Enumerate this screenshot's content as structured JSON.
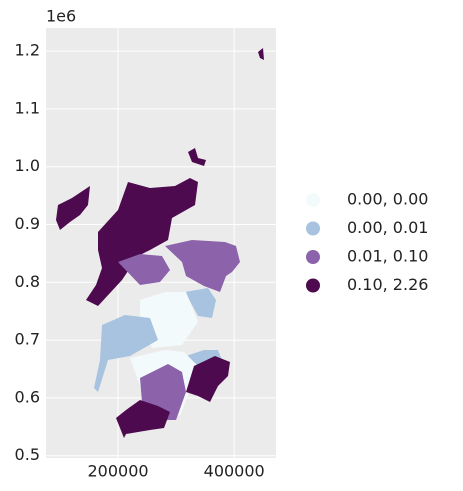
{
  "chart_data": {
    "type": "choropleth",
    "offset_label": "1e6",
    "xlim": [
      76000,
      472000
    ],
    "xticks": [
      200000,
      400000
    ],
    "ylim": [
      0.496,
      1.24
    ],
    "yticks": [
      0.5,
      0.6,
      0.7,
      0.8,
      0.9,
      {
        "value": 1,
        "label": "1.0"
      },
      1.1,
      1.2
    ],
    "grid": true,
    "legend": {
      "position": "right",
      "entries": [
        {
          "label": "0.00, 0.00",
          "color": "#f2fafb"
        },
        {
          "label": "0.00, 0.01",
          "color": "#a7c3df"
        },
        {
          "label": "0.01, 0.10",
          "color": "#8c62ab"
        },
        {
          "label": "0.10, 2.26",
          "color": "#4d0a4f"
        }
      ]
    }
  }
}
